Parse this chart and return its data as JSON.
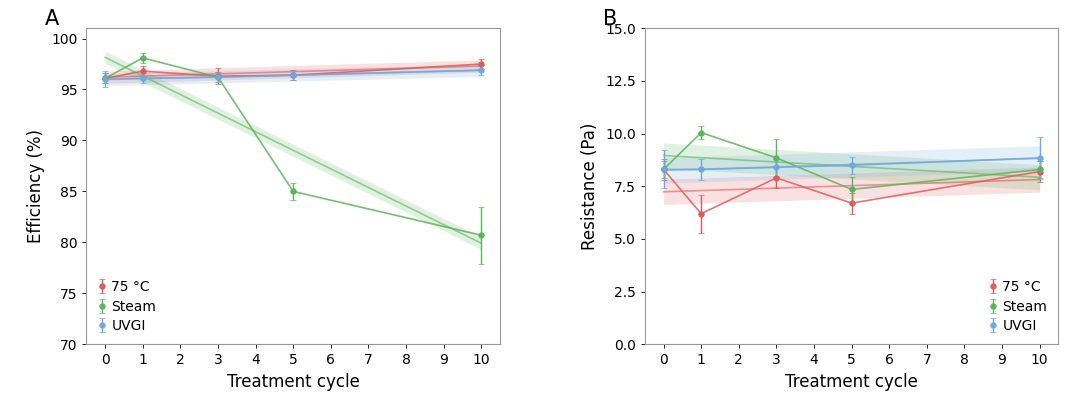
{
  "panel_A": {
    "label": "A",
    "xlabel": "Treatment cycle",
    "ylabel": "Efficiency (%)",
    "ylim": [
      70,
      101
    ],
    "yticks": [
      70,
      75,
      80,
      85,
      90,
      95,
      100
    ],
    "xticks": [
      0,
      1,
      2,
      3,
      4,
      5,
      6,
      7,
      8,
      9,
      10
    ],
    "series": [
      {
        "name": "75 °C",
        "color": "#e05a5a",
        "x": [
          0,
          1,
          3,
          5,
          10
        ],
        "y": [
          96.1,
          96.8,
          96.3,
          96.4,
          97.5
        ],
        "yerr": [
          0.5,
          0.5,
          0.8,
          0.5,
          0.5
        ]
      },
      {
        "name": "Steam",
        "color": "#5ab55a",
        "x": [
          0,
          1,
          3,
          5,
          10
        ],
        "y": [
          96.1,
          98.1,
          96.2,
          85.0,
          80.7
        ],
        "yerr": [
          0.5,
          0.5,
          0.5,
          0.8,
          2.8
        ]
      },
      {
        "name": "UVGI",
        "color": "#6fa8dc",
        "x": [
          0,
          1,
          3,
          5,
          10
        ],
        "y": [
          96.0,
          96.1,
          96.2,
          96.4,
          96.9
        ],
        "yerr": [
          0.8,
          0.5,
          0.5,
          0.5,
          0.5
        ]
      }
    ],
    "legend_loc": "lower left"
  },
  "panel_B": {
    "label": "B",
    "xlabel": "Treatment cycle",
    "ylabel": "Resistance (Pa)",
    "ylim": [
      0,
      15.0
    ],
    "yticks": [
      0.0,
      2.5,
      5.0,
      7.5,
      10.0,
      12.5,
      15.0
    ],
    "xticks": [
      0,
      1,
      2,
      3,
      4,
      5,
      6,
      7,
      8,
      9,
      10
    ],
    "series": [
      {
        "name": "75 °C",
        "color": "#e05a5a",
        "x": [
          0,
          1,
          3,
          5,
          10
        ],
        "y": [
          8.3,
          6.2,
          7.9,
          6.7,
          8.2
        ],
        "yerr": [
          0.5,
          0.9,
          0.5,
          0.5,
          0.5
        ]
      },
      {
        "name": "Steam",
        "color": "#5ab55a",
        "x": [
          0,
          1,
          3,
          5,
          10
        ],
        "y": [
          8.3,
          10.05,
          8.85,
          7.35,
          8.3
        ],
        "yerr": [
          0.4,
          0.3,
          0.9,
          0.6,
          0.4
        ]
      },
      {
        "name": "UVGI",
        "color": "#6fa8dc",
        "x": [
          0,
          1,
          3,
          5,
          10
        ],
        "y": [
          8.3,
          8.3,
          8.4,
          8.5,
          8.85
        ],
        "yerr": [
          0.9,
          0.5,
          0.4,
          0.4,
          1.0
        ]
      }
    ],
    "legend_loc": "lower right"
  },
  "label_fontsize": 12,
  "tick_fontsize": 10,
  "legend_fontsize": 10,
  "linewidth": 1.2,
  "markersize": 4,
  "capsize": 2.5,
  "elinewidth": 1.0,
  "trend_alpha": 0.18,
  "background_color": "#ffffff"
}
